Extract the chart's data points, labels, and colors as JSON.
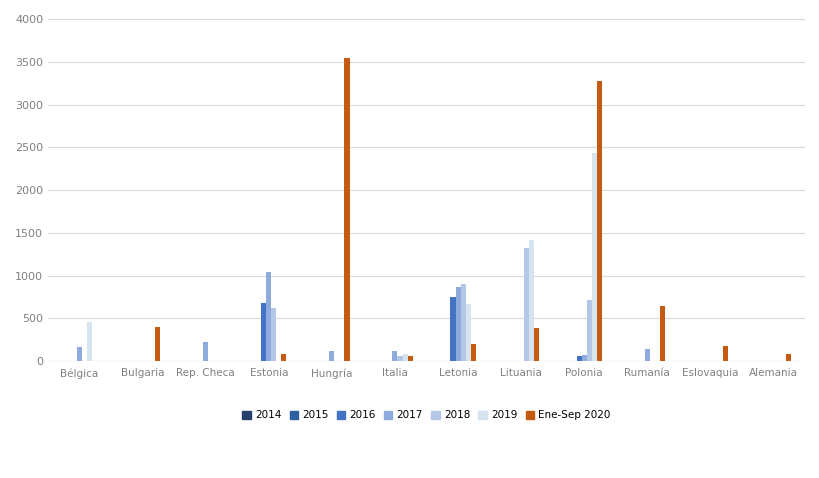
{
  "categories": [
    "Bélgica",
    "Bulgaria",
    "Rep. Checa",
    "Estonia",
    "Hungría",
    "Italia",
    "Letonia",
    "Lituania",
    "Polonia",
    "Rumanía",
    "Eslovaquia",
    "Alemania"
  ],
  "series": {
    "2014": [
      0,
      0,
      0,
      0,
      0,
      0,
      0,
      0,
      0,
      0,
      0,
      0
    ],
    "2015": [
      0,
      0,
      0,
      0,
      0,
      0,
      0,
      0,
      0,
      0,
      0,
      0
    ],
    "2016": [
      0,
      0,
      0,
      680,
      0,
      0,
      750,
      0,
      60,
      0,
      0,
      0
    ],
    "2017": [
      160,
      0,
      220,
      1040,
      120,
      120,
      870,
      0,
      70,
      140,
      0,
      0
    ],
    "2018": [
      0,
      0,
      0,
      620,
      0,
      60,
      900,
      1320,
      720,
      0,
      0,
      0
    ],
    "2019": [
      460,
      0,
      0,
      0,
      0,
      80,
      670,
      1420,
      2430,
      0,
      0,
      0
    ],
    "Ene-Sep 2020": [
      0,
      400,
      0,
      80,
      3540,
      60,
      200,
      390,
      3270,
      640,
      180,
      80
    ]
  },
  "colors": {
    "2014": "#243f6b",
    "2015": "#2e5fa3",
    "2016": "#4472c4",
    "2017": "#8faadc",
    "2018": "#b4c7e7",
    "2019": "#d6e4f0",
    "Ene-Sep 2020": "#c55a11"
  },
  "ylim": [
    0,
    4000
  ],
  "yticks": [
    0,
    500,
    1000,
    1500,
    2000,
    2500,
    3000,
    3500,
    4000
  ],
  "background_color": "#ffffff",
  "grid_color": "#d9d9d9",
  "tick_color": "#808080",
  "legend_labels": [
    "2014",
    "2015",
    "2016",
    "2017",
    "2018",
    "2019",
    "Ene-Sep 2020"
  ]
}
